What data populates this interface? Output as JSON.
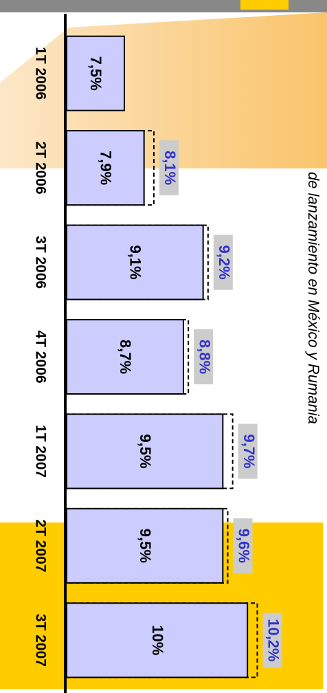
{
  "chart_data": {
    "type": "bar",
    "orientation": "horizontal",
    "annotation": "de lanzamiento en México y Rumania",
    "categories": [
      "1T 2006",
      "2T 2006",
      "3T 2006",
      "4T 2006",
      "1T 2007",
      "2T 2007",
      "3T 2007"
    ],
    "series": [
      {
        "color": "#ccccff",
        "values": [
          7.5,
          7.9,
          9.1,
          8.7,
          9.5,
          9.5,
          10
        ],
        "value_labels": [
          "7,5%",
          "7,9%",
          "9,1%",
          "8,7%",
          "9,5%",
          "9,5%",
          "10%"
        ]
      },
      {
        "color": "#3333cc",
        "style": "dashed",
        "values": [
          null,
          8.1,
          9.2,
          8.8,
          9.7,
          9.6,
          10.2
        ],
        "value_labels": [
          null,
          "8,1%",
          "9,2%",
          "8,8%",
          "9,7%",
          "9,6%",
          "10,2%"
        ]
      }
    ],
    "xlim": [
      6.3,
      10.5
    ]
  }
}
